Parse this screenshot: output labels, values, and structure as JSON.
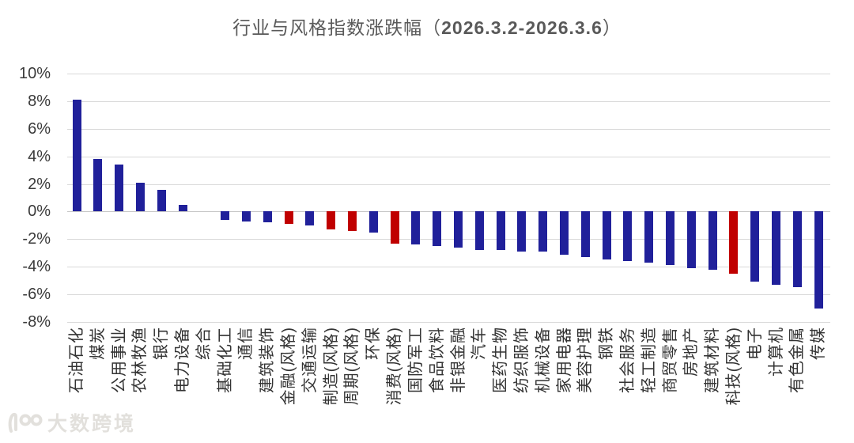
{
  "title": {
    "prefix": "行业与风格指数涨跌幅（",
    "date": "2026.3.2-2026.3.6",
    "suffix": "）"
  },
  "watermark": {
    "logo": "10100-logo",
    "text": "大数跨境"
  },
  "chart_data": {
    "type": "bar",
    "title": "行业与风格指数涨跌幅（2026.3.2-2026.3.6）",
    "xlabel": "",
    "ylabel": "",
    "unit": "%",
    "ylim": [
      -8,
      10
    ],
    "ytick_labels": [
      "10%",
      "8%",
      "6%",
      "4%",
      "2%",
      "0%",
      "-2%",
      "-4%",
      "-6%",
      "-8%"
    ],
    "grid": "horizontal",
    "legend": "none",
    "categories": [
      "石油石化",
      "煤炭",
      "公用事业",
      "农林牧渔",
      "银行",
      "电力设备",
      "综合",
      "基础化工",
      "通信",
      "建筑装饰",
      "金融(风格)",
      "交通运输",
      "制造(风格)",
      "周期(风格)",
      "环保",
      "消费(风格)",
      "国防军工",
      "食品饮料",
      "非银金融",
      "汽车",
      "医药生物",
      "纺织服饰",
      "机械设备",
      "家用电器",
      "美容护理",
      "钢铁",
      "社会服务",
      "轻工制造",
      "商贸零售",
      "房地产",
      "建筑材料",
      "科技(风格)",
      "电子",
      "计算机",
      "有色金属",
      "传媒"
    ],
    "values": [
      8.1,
      3.8,
      3.4,
      2.1,
      1.6,
      0.5,
      0.0,
      -0.6,
      -0.7,
      -0.8,
      -0.9,
      -1.0,
      -1.3,
      -1.4,
      -1.5,
      -2.3,
      -2.4,
      -2.5,
      -2.6,
      -2.8,
      -2.8,
      -2.9,
      -2.9,
      -3.1,
      -3.3,
      -3.5,
      -3.6,
      -3.7,
      -3.9,
      -4.1,
      -4.2,
      -4.5,
      -5.1,
      -5.3,
      -5.5,
      -7.0
    ],
    "bar_color_keys": [
      "blue",
      "blue",
      "blue",
      "blue",
      "blue",
      "blue",
      "blue",
      "blue",
      "blue",
      "blue",
      "red",
      "blue",
      "red",
      "red",
      "blue",
      "red",
      "blue",
      "blue",
      "blue",
      "blue",
      "blue",
      "blue",
      "blue",
      "blue",
      "blue",
      "blue",
      "blue",
      "blue",
      "blue",
      "blue",
      "blue",
      "red",
      "blue",
      "blue",
      "blue",
      "blue"
    ],
    "highlighted_categories": [
      "金融(风格)",
      "制造(风格)",
      "周期(风格)",
      "消费(风格)",
      "科技(风格)"
    ],
    "colors": {
      "blue": "#20209a",
      "red": "#c00000",
      "gridline": "#d9d9d9",
      "title_text": "#595959",
      "axis_text": "#3a3a3a"
    }
  }
}
